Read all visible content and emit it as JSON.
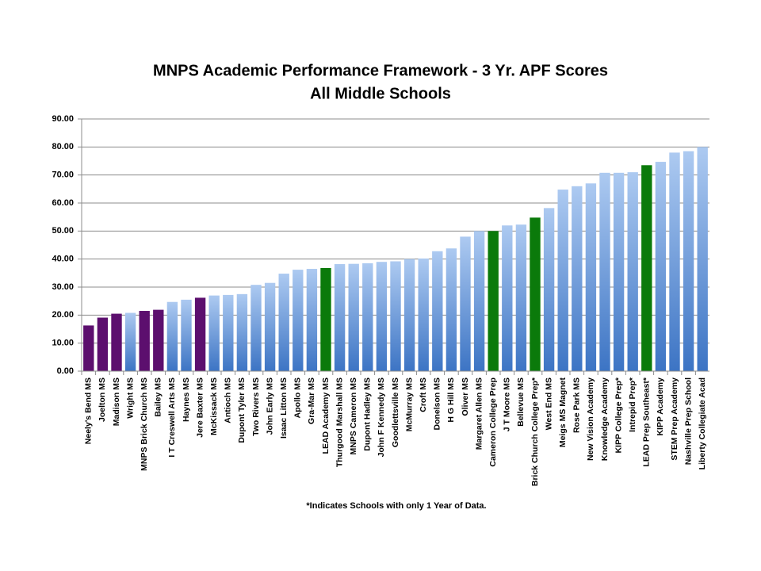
{
  "chart_data": {
    "type": "bar",
    "title": "MNPS Academic Performance Framework - 3 Yr. APF Scores",
    "subtitle": "All Middle Schools",
    "footnote": "*Indicates  Schools  with only 1 Year of Data.",
    "categories": [
      "Neely's Bend MS",
      "Joelton MS",
      "Madison MS",
      "Wright MS",
      "MNPS Brick Church MS",
      "Bailey MS",
      "I T Creswell Arts MS",
      "Haynes MS",
      "Jere Baxter MS",
      "McKissack MS",
      "Antioch MS",
      "Dupont Tyler MS",
      "Two Rivers MS",
      "John Early MS",
      "Isaac Litton MS",
      "Apollo MS",
      "Gra-Mar MS",
      "LEAD Academy MS",
      "Thurgood Marshall MS",
      "MNPS Cameron MS",
      "Dupont Hadley MS",
      "John F Kennedy MS",
      "Goodlettsville MS",
      "McMurray MS",
      "Croft MS",
      "Donelson MS",
      "H G Hill MS",
      "Oliver MS",
      "Margaret Allen MS",
      "Cameron College Prep",
      "J T Moore MS",
      "Bellevue MS",
      "Brick Church College Prep*",
      "West End MS",
      "Meigs MS Magnet",
      "Rose Park MS",
      "New Vision Academy",
      "Knowledge Academy",
      "KIPP College Prep*",
      "Intrepid Prep*",
      "LEAD Prep Southeast*",
      "KIPP Academy",
      "STEM Prep Academy",
      "Nashville Prep School",
      "Liberty Collegiate Acad"
    ],
    "values": [
      16.3,
      19.1,
      20.5,
      20.8,
      21.5,
      21.9,
      24.7,
      25.5,
      26.2,
      27.0,
      27.2,
      27.5,
      30.8,
      31.5,
      34.8,
      36.2,
      36.5,
      36.8,
      38.2,
      38.3,
      38.5,
      39.0,
      39.2,
      40.0,
      40.2,
      42.8,
      43.8,
      48.0,
      50.0,
      50.0,
      52.0,
      52.3,
      54.8,
      58.2,
      64.8,
      66.0,
      67.0,
      70.8,
      70.8,
      71.0,
      73.5,
      74.7,
      78.0,
      78.5,
      80.0
    ],
    "colors": [
      "#5c0f6e",
      "#5c0f6e",
      "#5c0f6e",
      "#6a9ee6",
      "#5c0f6e",
      "#5c0f6e",
      "#6a9ee6",
      "#6a9ee6",
      "#5c0f6e",
      "#6a9ee6",
      "#6a9ee6",
      "#6a9ee6",
      "#6a9ee6",
      "#6a9ee6",
      "#6a9ee6",
      "#6a9ee6",
      "#6a9ee6",
      "#0b7a0b",
      "#6a9ee6",
      "#6a9ee6",
      "#6a9ee6",
      "#6a9ee6",
      "#6a9ee6",
      "#6a9ee6",
      "#6a9ee6",
      "#6a9ee6",
      "#6a9ee6",
      "#6a9ee6",
      "#6a9ee6",
      "#0b7a0b",
      "#6a9ee6",
      "#6a9ee6",
      "#0b7a0b",
      "#6a9ee6",
      "#6a9ee6",
      "#6a9ee6",
      "#6a9ee6",
      "#6a9ee6",
      "#6a9ee6",
      "#6a9ee6",
      "#0b7a0b",
      "#6a9ee6",
      "#6a9ee6",
      "#6a9ee6",
      "#6a9ee6"
    ],
    "ylim": [
      0,
      90
    ],
    "yticks": [
      {
        "value": 0,
        "label": "0.00"
      },
      {
        "value": 10,
        "label": "10.00"
      },
      {
        "value": 20,
        "label": "20.00"
      },
      {
        "value": 30,
        "label": "30.00"
      },
      {
        "value": 40,
        "label": "40.00"
      },
      {
        "value": 50,
        "label": "50.00"
      },
      {
        "value": 60,
        "label": "60.00"
      },
      {
        "value": 70,
        "label": "70.00"
      },
      {
        "value": 80,
        "label": "80.00"
      },
      {
        "value": 90,
        "label": "90.00"
      }
    ],
    "grid": true
  }
}
